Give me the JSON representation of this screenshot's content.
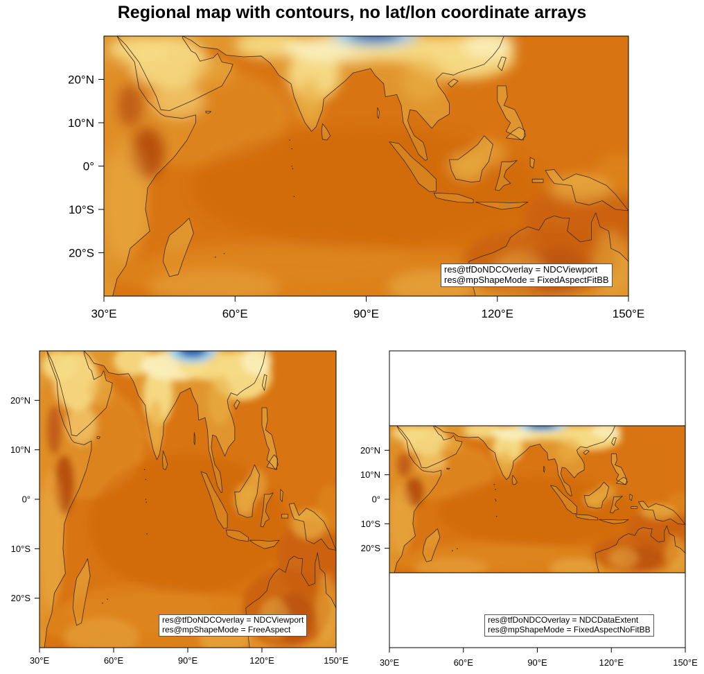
{
  "title": "Regional map with contours, no lat/lon coordinate arrays",
  "colors": {
    "ocean": "#D87412",
    "ocean_dark": "#C95F0A",
    "ocean_mid": "#E08A22",
    "land_light": "#F6DB86",
    "land_mid": "#EAB046",
    "land_pale": "#FAF0BE",
    "cold_core": "#1E5FA8",
    "cold_edge": "#9CCBE8",
    "hot_spot": "#B44A10",
    "coast": "#3a2a1a",
    "frame": "#000000"
  },
  "map": {
    "lon_ticks": [
      "30°E",
      "60°E",
      "90°E",
      "120°E",
      "150°E"
    ],
    "lat_ticks": [
      "20°N",
      "10°N",
      "0°",
      "10°S",
      "20°S"
    ],
    "lon_range": [
      30,
      150
    ],
    "lat_range": [
      -30,
      30
    ]
  },
  "panels": [
    {
      "name": "top-map",
      "overlay_line": "res@tfDoNDCOverlay = NDCViewport",
      "shape_line": "res@mpShapeMode = FixedAspectFitBB"
    },
    {
      "name": "bottom-left-map",
      "overlay_line": "res@tfDoNDCOverlay = NDCViewport",
      "shape_line": "res@mpShapeMode = FreeAspect"
    },
    {
      "name": "bottom-right-map",
      "overlay_line": "res@tfDoNDCOverlay = NDCDataExtent",
      "shape_line": "res@mpShapeMode = FixedAspectNoFitBB"
    }
  ]
}
